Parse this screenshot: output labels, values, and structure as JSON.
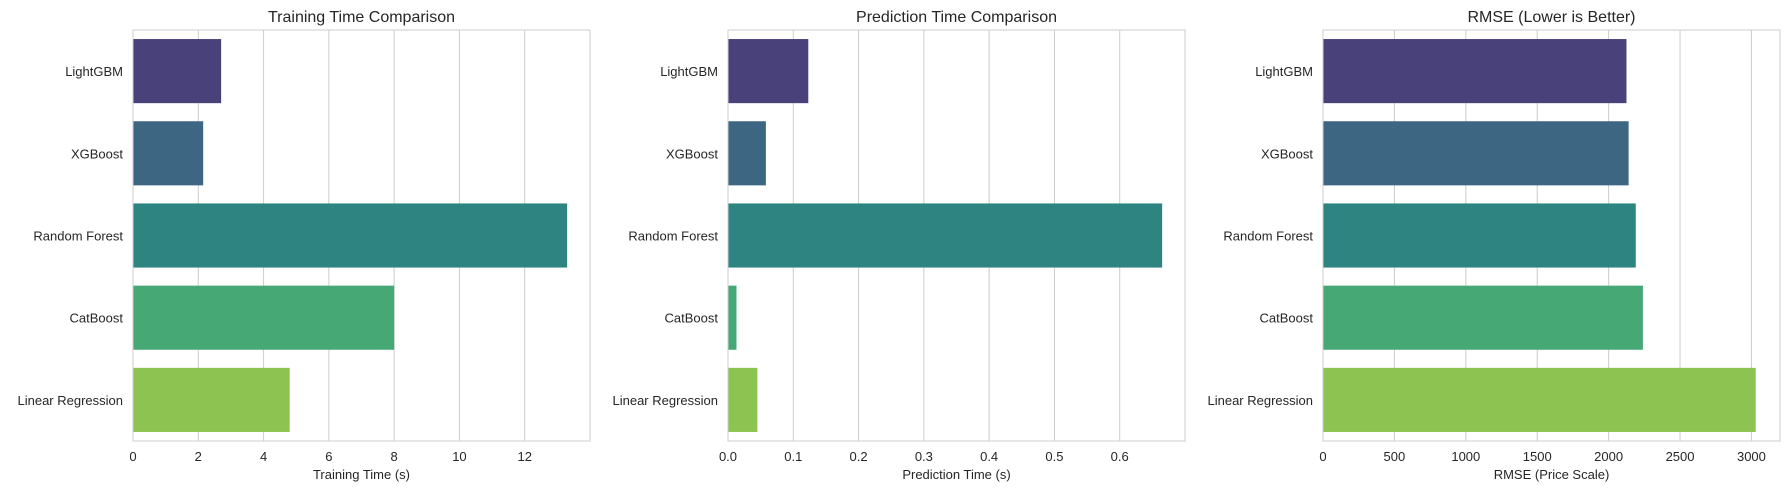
{
  "chart_data": [
    {
      "type": "bar",
      "orientation": "horizontal",
      "title": "Training Time Comparison",
      "xlabel": "Training Time (s)",
      "ylabel": "",
      "categories": [
        "LightGBM",
        "XGBoost",
        "Random Forest",
        "CatBoost",
        "Linear Regression"
      ],
      "values": [
        2.7,
        2.15,
        13.3,
        8.0,
        4.8
      ],
      "xlim": [
        0,
        14
      ],
      "xticks": [
        0,
        2,
        4,
        6,
        8,
        10,
        12
      ],
      "xtick_labels": [
        "0",
        "2",
        "4",
        "6",
        "8",
        "10",
        "12"
      ],
      "grid": "x",
      "colors": [
        "#48417a",
        "#3d6683",
        "#2e8480",
        "#46a874",
        "#8dc351"
      ]
    },
    {
      "type": "bar",
      "orientation": "horizontal",
      "title": "Prediction Time Comparison",
      "xlabel": "Prediction Time (s)",
      "ylabel": "",
      "categories": [
        "LightGBM",
        "XGBoost",
        "Random Forest",
        "CatBoost",
        "Linear Regression"
      ],
      "values": [
        0.123,
        0.058,
        0.665,
        0.013,
        0.045
      ],
      "xlim": [
        0,
        0.7
      ],
      "xticks": [
        0,
        0.1,
        0.2,
        0.3,
        0.4,
        0.5,
        0.6
      ],
      "xtick_labels": [
        "0.0",
        "0.1",
        "0.2",
        "0.3",
        "0.4",
        "0.5",
        "0.6"
      ],
      "grid": "x",
      "colors": [
        "#48417a",
        "#3d6683",
        "#2e8480",
        "#46a874",
        "#8dc351"
      ]
    },
    {
      "type": "bar",
      "orientation": "horizontal",
      "title": "RMSE (Lower is Better)",
      "xlabel": "RMSE (Price Scale)",
      "ylabel": "",
      "categories": [
        "LightGBM",
        "XGBoost",
        "Random Forest",
        "CatBoost",
        "Linear Regression"
      ],
      "values": [
        2125,
        2140,
        2190,
        2240,
        3030
      ],
      "xlim": [
        0,
        3200
      ],
      "xticks": [
        0,
        500,
        1000,
        1500,
        2000,
        2500,
        3000
      ],
      "xtick_labels": [
        "0",
        "500",
        "1000",
        "1500",
        "2000",
        "2500",
        "3000"
      ],
      "grid": "x",
      "colors": [
        "#48417a",
        "#3d6683",
        "#2e8480",
        "#46a874",
        "#8dc351"
      ]
    }
  ]
}
